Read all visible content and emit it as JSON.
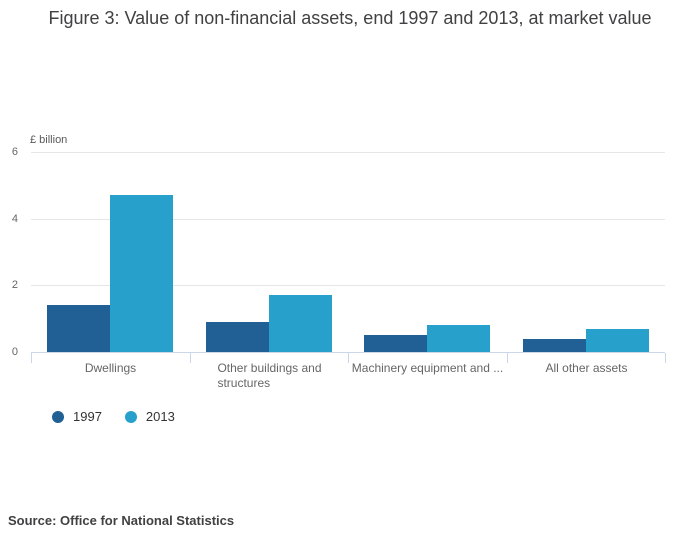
{
  "figure": {
    "title": "Figure 3: Value of non-financial assets, end 1997 and 2013, at market value",
    "source": "Source: Office for National Statistics"
  },
  "chart_data": {
    "type": "bar",
    "title": "Figure 3: Value of non-financial assets, end 1997 and 2013, at market value",
    "xlabel": "",
    "ylabel": "£ billion",
    "ylim": [
      0,
      6
    ],
    "yticks": [
      0,
      2,
      4,
      6
    ],
    "grid": true,
    "legend_position": "bottom-left",
    "categories": [
      "Dwellings",
      "Other buildings and structures",
      "Machinery equipment and ...",
      "All other assets"
    ],
    "category_display_lines": [
      [
        "Dwellings"
      ],
      [
        "Other buildings and",
        "structures"
      ],
      [
        "Machinery equipment and ..."
      ],
      [
        "All other assets"
      ]
    ],
    "series": [
      {
        "name": "1997",
        "color": "#206095",
        "values": [
          1.4,
          0.9,
          0.5,
          0.4
        ]
      },
      {
        "name": "2013",
        "color": "#27a0cc",
        "values": [
          4.7,
          1.7,
          0.8,
          0.7
        ]
      }
    ]
  }
}
